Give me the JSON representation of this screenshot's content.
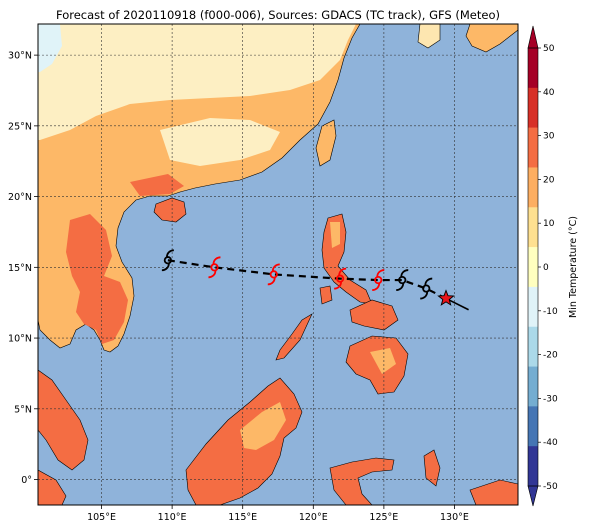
{
  "title": "Forecast of 2020110918 (f000-006), Sources: GDACS (TC track), GFS (Meteo)",
  "map": {
    "lon_range": [
      100.5,
      134.5
    ],
    "lat_range": [
      -1.8,
      32.2
    ],
    "lon_ticks": [
      {
        "value": 105,
        "label": "105°E"
      },
      {
        "value": 110,
        "label": "110°E"
      },
      {
        "value": 115,
        "label": "115°E"
      },
      {
        "value": 120,
        "label": "120°E"
      },
      {
        "value": 125,
        "label": "125°E"
      },
      {
        "value": 130,
        "label": "130°E"
      }
    ],
    "lat_ticks": [
      {
        "value": 0,
        "label": "0°"
      },
      {
        "value": 5,
        "label": "5°N"
      },
      {
        "value": 10,
        "label": "10°N"
      },
      {
        "value": 15,
        "label": "15°N"
      },
      {
        "value": 20,
        "label": "20°N"
      },
      {
        "value": 25,
        "label": "25°N"
      },
      {
        "value": 30,
        "label": "30°N"
      }
    ],
    "grid": true,
    "sea_color": "#8fb3da"
  },
  "track": {
    "points": [
      {
        "lon": 109.7,
        "lat": 15.5,
        "color": "#000000"
      },
      {
        "lon": 113.0,
        "lat": 15.0,
        "color": "#ff0000"
      },
      {
        "lon": 117.2,
        "lat": 14.5,
        "color": "#ff0000"
      },
      {
        "lon": 121.9,
        "lat": 14.2,
        "color": "#ff0000"
      },
      {
        "lon": 124.6,
        "lat": 14.1,
        "color": "#ff0000"
      },
      {
        "lon": 126.3,
        "lat": 14.1,
        "color": "#000000"
      },
      {
        "lon": 128.0,
        "lat": 13.5,
        "color": "#000000"
      }
    ],
    "current_position": {
      "lon": 129.4,
      "lat": 12.8
    },
    "past_track_end": {
      "lon": 131.0,
      "lat": 12.0
    }
  },
  "colorbar": {
    "label": "Min Temperature (°C)",
    "ticks": [
      "-50",
      "-40",
      "-30",
      "-20",
      "-10",
      "0",
      "10",
      "20",
      "30",
      "40",
      "50"
    ],
    "colors": [
      "#313695",
      "#4575b4",
      "#74add1",
      "#abd9e9",
      "#e0f3f8",
      "#ffffbf",
      "#fee090",
      "#fdae61",
      "#f46d43",
      "#d73027",
      "#a50026"
    ],
    "under_color": "#313695",
    "over_color": "#a50026"
  }
}
